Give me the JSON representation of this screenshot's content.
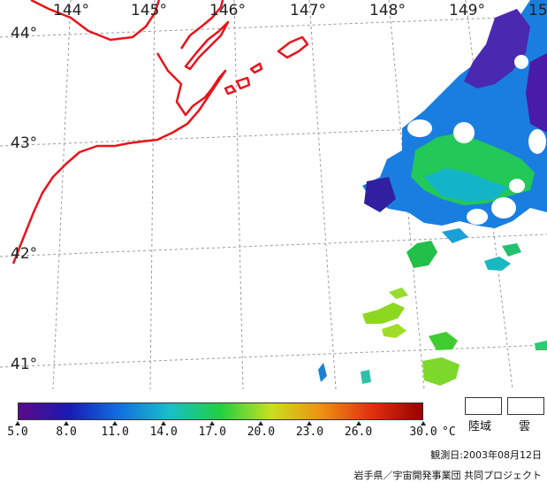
{
  "map": {
    "longitude_labels": [
      "144°",
      "145°",
      "146°",
      "147°",
      "148°",
      "149°",
      "15"
    ],
    "latitude_labels": [
      "44°",
      "43°",
      "42°",
      "41°"
    ]
  },
  "colorbar": {
    "ticks": [
      "5.0",
      "8.0",
      "11.0",
      "14.0",
      "17.0",
      "20.0",
      "23.0",
      "26.0",
      "30.0"
    ],
    "unit": "°C",
    "range": [
      5.0,
      30.0
    ]
  },
  "legend": {
    "land_label": "陸域",
    "cloud_label": "雲"
  },
  "observation": {
    "text": "観測日:2003年08月12日"
  },
  "credit": {
    "text": "岩手県／宇宙開発事業団 共同プロジェクト"
  },
  "colors": {
    "coastline": "#e8141a",
    "grid": "#9a9a9a",
    "colorbar_stops": [
      "#5b0a8a",
      "#1a1ab4",
      "#1070e0",
      "#18c0c8",
      "#20d040",
      "#c8e020",
      "#f09010",
      "#e03010",
      "#980000"
    ]
  }
}
